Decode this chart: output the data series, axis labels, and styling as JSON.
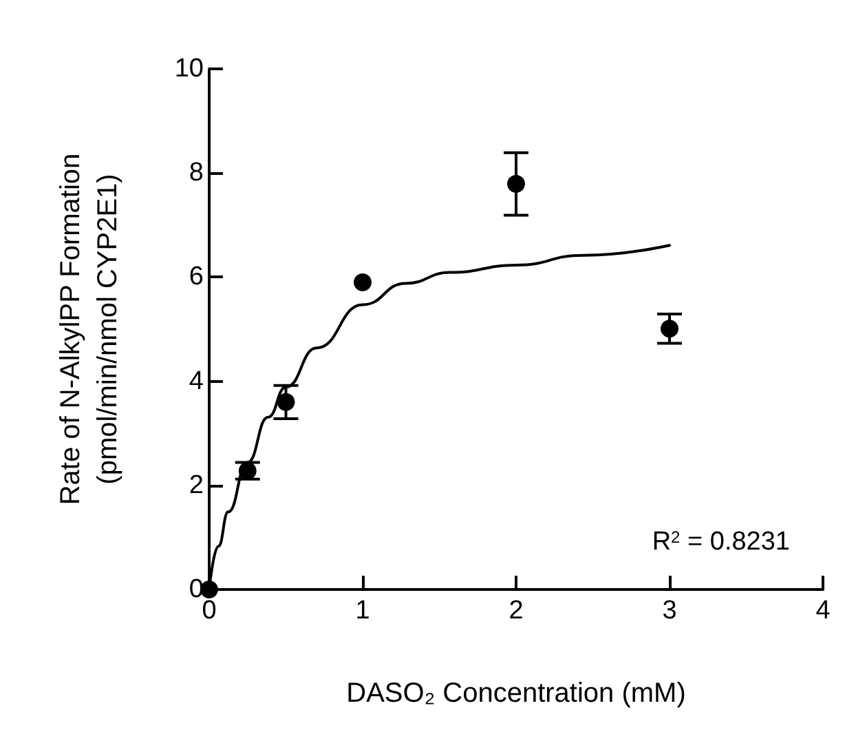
{
  "chart_data": {
    "type": "scatter",
    "xlabel": "DASO₂ Concentration (mM)",
    "ylabel": "Rate of N-AlkylPP Formation\n(pmol/min/nmol CYP2E1)",
    "annotations": [
      "R$^{2}$ = 0.8231"
    ],
    "xlim": [
      0,
      4
    ],
    "xticks": [
      0,
      1,
      2,
      3,
      4
    ],
    "ylim": [
      0,
      10
    ],
    "yticks": [
      0,
      2,
      4,
      6,
      8,
      10
    ],
    "grid": false,
    "marker": "circle",
    "series": [
      {
        "color": "#000000",
        "x": [
          0,
          0.25,
          0.5,
          1,
          2,
          3
        ],
        "values": [
          0,
          2.28,
          3.6,
          5.9,
          7.79,
          5.01
        ],
        "errors": [
          null,
          0.16,
          0.32,
          null,
          0.6,
          0.28
        ]
      },
      {
        "type": "line",
        "color": "#000000",
        "marker": "none",
        "line_style": "solid",
        "x": [
          0,
          0.06,
          0.124,
          0.25,
          0.384,
          0.5,
          0.7,
          1,
          1.28,
          1.57,
          2,
          2.44,
          3
        ],
        "values": [
          0,
          0.83,
          1.49,
          2.44,
          3.31,
          3.89,
          4.64,
          5.47,
          5.88,
          6.09,
          6.23,
          6.42,
          6.61
        ]
      }
    ]
  }
}
